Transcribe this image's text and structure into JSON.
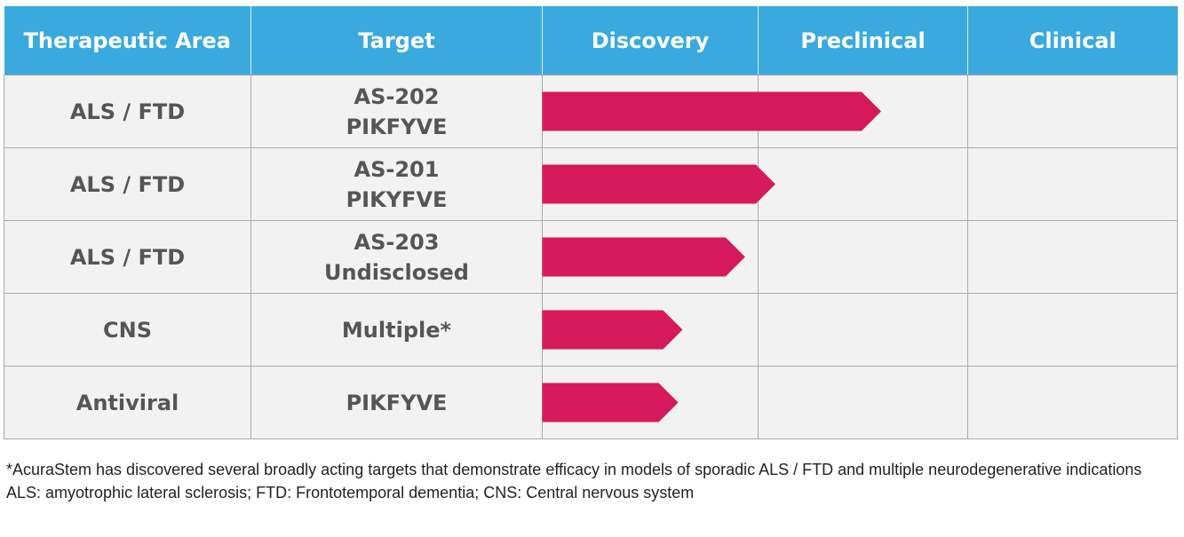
{
  "colors": {
    "header_bg": "#3aaade",
    "cell_bg": "#f2f2f2",
    "bar": "#d6195a",
    "text": "#555555"
  },
  "table": {
    "headers": [
      "Therapeutic Area",
      "Target",
      "Discovery",
      "Preclinical",
      "Clinical"
    ]
  },
  "chart_data": {
    "type": "bar",
    "stages": [
      "Discovery",
      "Preclinical",
      "Clinical"
    ],
    "rows": [
      {
        "area": "ALS / FTD",
        "target_lines": [
          "AS-202",
          "PIKFYVE"
        ],
        "progress": 1.57
      },
      {
        "area": "ALS / FTD",
        "target_lines": [
          "AS-201",
          "PIKYFVE"
        ],
        "progress": 1.08
      },
      {
        "area": "ALS / FTD",
        "target_lines": [
          "AS-203",
          "Undisclosed"
        ],
        "progress": 0.94
      },
      {
        "area": "CNS",
        "target_lines": [
          "Multiple*"
        ],
        "progress": 0.65
      },
      {
        "area": "Antiviral",
        "target_lines": [
          "PIKFYVE"
        ],
        "progress": 0.63
      }
    ]
  },
  "footnotes": [
    "*AcuraStem has discovered several broadly acting targets that demonstrate efficacy in models of sporadic ALS / FTD and multiple neurodegenerative indications",
    "ALS: amyotrophic lateral sclerosis; FTD: Frontotemporal dementia; CNS: Central nervous system"
  ]
}
